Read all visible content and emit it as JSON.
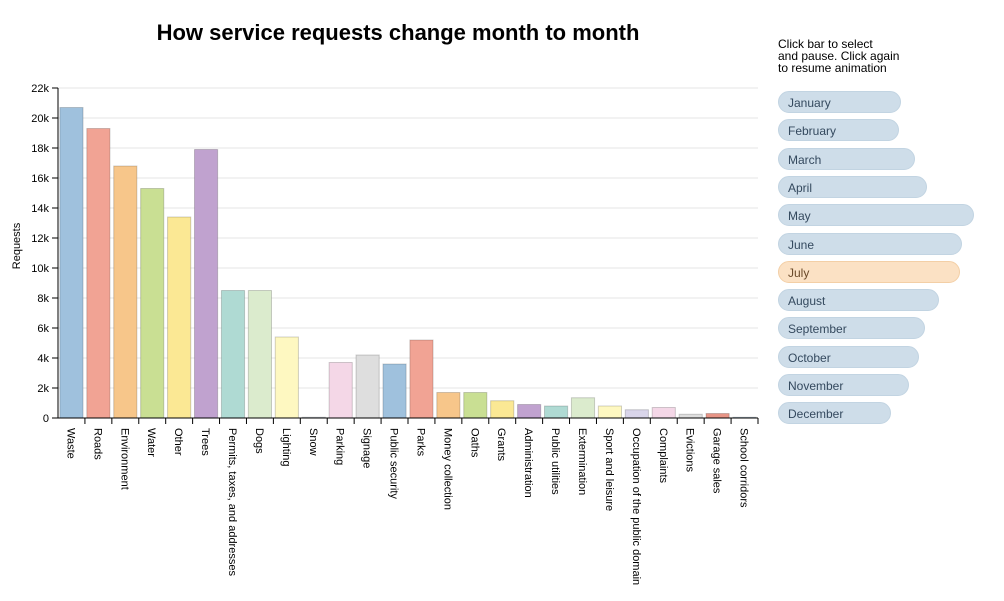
{
  "chart_data": {
    "type": "bar",
    "title": "How service requests change month to month",
    "ylabel": "Requests",
    "xlabel": "",
    "ylim": [
      0,
      22000
    ],
    "yticks": [
      0,
      2000,
      4000,
      6000,
      8000,
      10000,
      12000,
      14000,
      16000,
      18000,
      20000,
      22000
    ],
    "ytick_labels": [
      "0",
      "2k",
      "4k",
      "6k",
      "8k",
      "10k",
      "12k",
      "14k",
      "16k",
      "18k",
      "20k",
      "22k"
    ],
    "grid": true,
    "categories": [
      "Waste",
      "Roads",
      "Environment",
      "Water",
      "Other",
      "Trees",
      "Permits, taxes, and addresses",
      "Dogs",
      "Lighting",
      "Snow",
      "Parking",
      "Signage",
      "Public security",
      "Parks",
      "Money collection",
      "Oaths",
      "Grants",
      "Administration",
      "Public utilities",
      "Extermination",
      "Sport and leisure",
      "Occupation of the public domain",
      "Complaints",
      "Evictions",
      "Garage sales",
      "School corridors"
    ],
    "values": [
      20700,
      19300,
      16800,
      15300,
      13400,
      17900,
      8500,
      8500,
      5400,
      50,
      3700,
      4200,
      3600,
      5200,
      1700,
      1700,
      1150,
      900,
      800,
      1350,
      800,
      550,
      700,
      250,
      300,
      50
    ],
    "colors": [
      "#9fc1dd",
      "#f1a394",
      "#f7c68a",
      "#c9df93",
      "#fbe894",
      "#c0a2cf",
      "#afdad3",
      "#dbebcd",
      "#fef8c1",
      "#cfdbe7",
      "#f4d7e7",
      "#dedede",
      "#9fc1dd",
      "#f1a394",
      "#f7c68a",
      "#c9df93",
      "#fbe894",
      "#c0a2cf",
      "#afdad3",
      "#dbebcd",
      "#fef8c1",
      "#d9d5ea",
      "#f4d7e7",
      "#dedede",
      "#e79486",
      "#9fc1dd"
    ]
  },
  "instructions": [
    "Click bar to select",
    "and pause. Click again",
    "to resume animation"
  ],
  "months": [
    {
      "label": "January",
      "total": 0.56
    },
    {
      "label": "February",
      "total": 0.55
    },
    {
      "label": "March",
      "total": 0.63
    },
    {
      "label": "April",
      "total": 0.69
    },
    {
      "label": "May",
      "total": 0.93
    },
    {
      "label": "June",
      "total": 0.87
    },
    {
      "label": "July",
      "total": 0.86
    },
    {
      "label": "August",
      "total": 0.75
    },
    {
      "label": "September",
      "total": 0.68
    },
    {
      "label": "October",
      "total": 0.65
    },
    {
      "label": "November",
      "total": 0.6
    },
    {
      "label": "December",
      "total": 0.51
    }
  ],
  "selected_month": "July",
  "colors": {
    "month_pill": "#cedde9",
    "month_pill_selected": "#fbe1c4",
    "grid": "#e6e6e6"
  }
}
